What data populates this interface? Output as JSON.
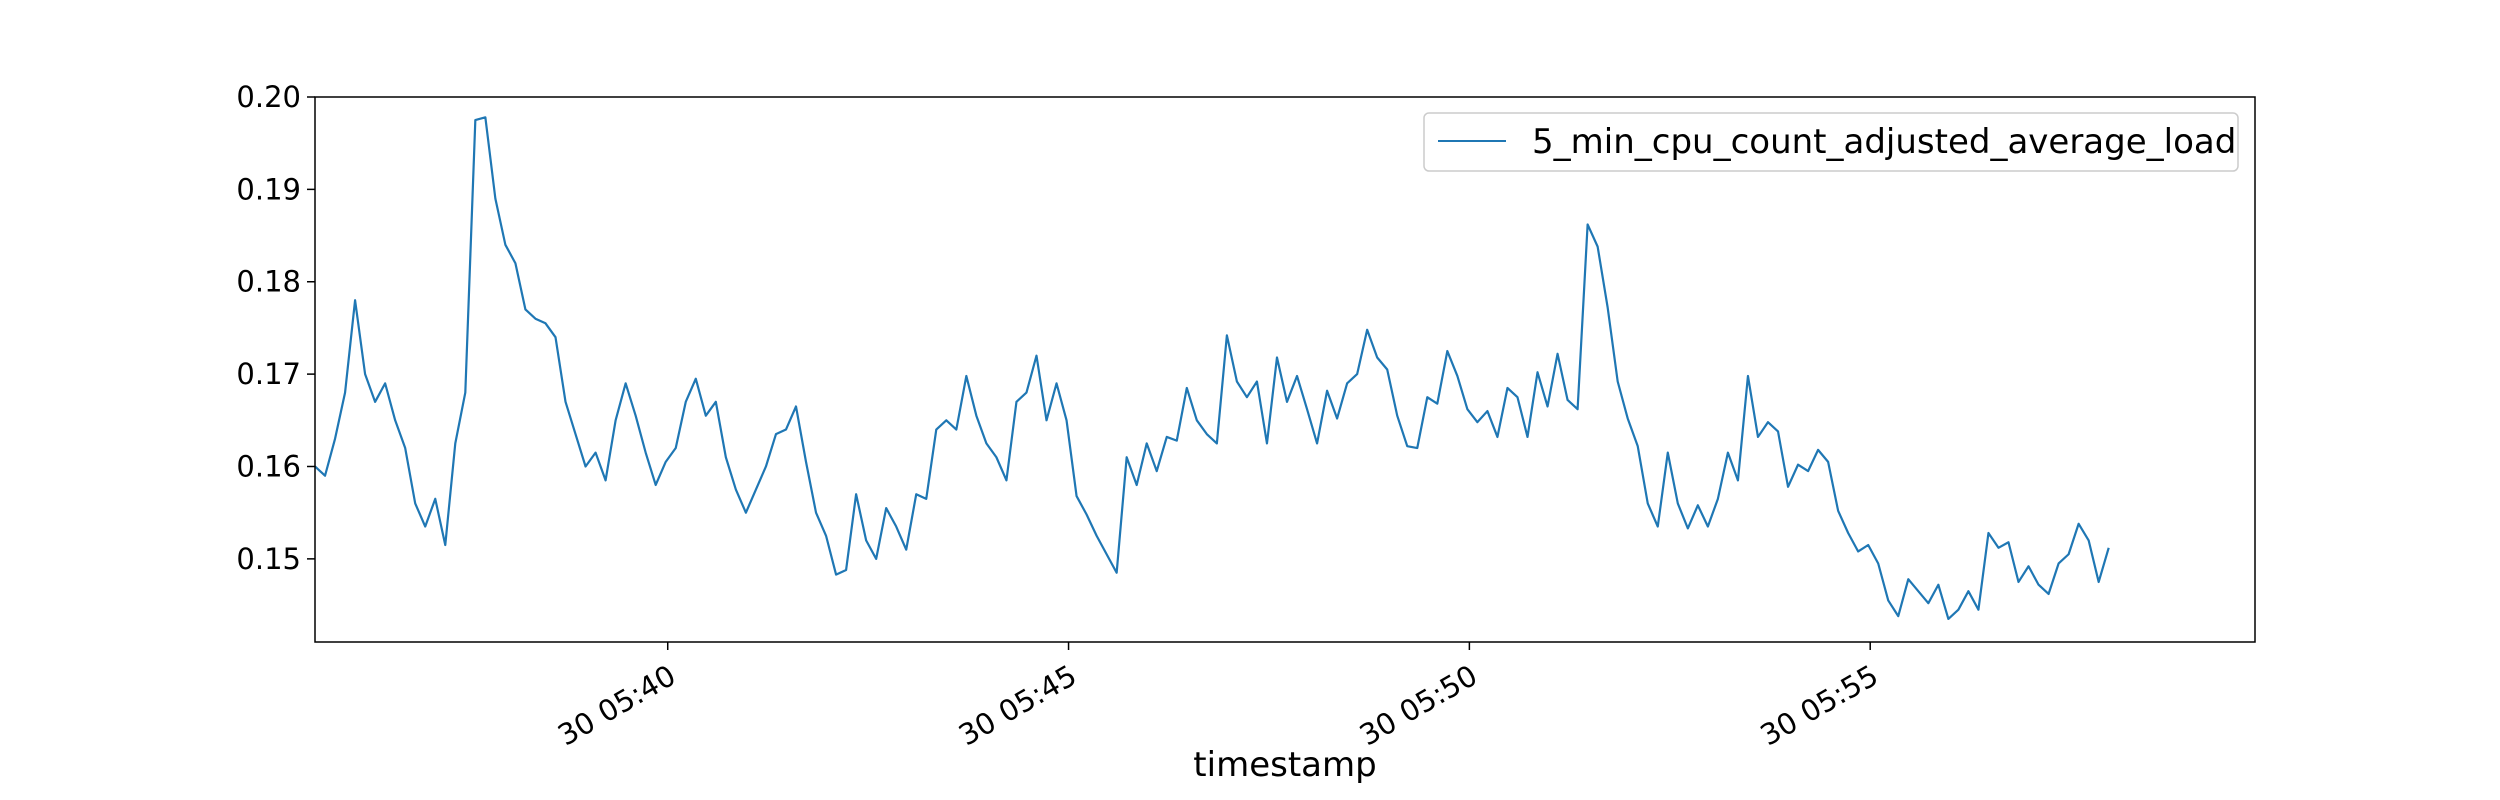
{
  "chart_data": {
    "type": "line",
    "title": "",
    "xlabel": "timestamp",
    "ylabel": "",
    "x_ticks": [
      {
        "value": 5.2,
        "label": "30 05:40"
      },
      {
        "value": 10.2,
        "label": "30 05:45"
      },
      {
        "value": 15.2,
        "label": "30 05:50"
      },
      {
        "value": 20.2,
        "label": "30 05:55"
      }
    ],
    "xlim": [
      0.8,
      25.0
    ],
    "x_unit": "minutes after 05:35",
    "y_ticks": [
      0.15,
      0.16,
      0.17,
      0.18,
      0.19,
      0.2
    ],
    "y_tick_labels": [
      "0.15",
      "0.16",
      "0.17",
      "0.18",
      "0.19",
      "0.20"
    ],
    "ylim": [
      0.141,
      0.2
    ],
    "grid": false,
    "legend": {
      "position": "top-right"
    },
    "series": [
      {
        "name": "5_min_cpu_count_adjusted_average_load",
        "color": "#1f77b4",
        "x_start": 0.8,
        "x_step": 0.125,
        "values": [
          0.16,
          0.159,
          0.163,
          0.168,
          0.178,
          0.17,
          0.167,
          0.169,
          0.165,
          0.162,
          0.156,
          0.1535,
          0.1565,
          0.1515,
          0.1625,
          0.168,
          0.1975,
          0.1978,
          0.189,
          0.184,
          0.182,
          0.177,
          0.176,
          0.1755,
          0.174,
          0.167,
          0.1635,
          0.16,
          0.1615,
          0.1585,
          0.165,
          0.169,
          0.1655,
          0.1615,
          0.158,
          0.1605,
          0.162,
          0.167,
          0.1695,
          0.1655,
          0.167,
          0.161,
          0.1575,
          0.155,
          0.1575,
          0.16,
          0.1635,
          0.164,
          0.1665,
          0.1605,
          0.155,
          0.1525,
          0.1483,
          0.1488,
          0.157,
          0.152,
          0.15,
          0.1555,
          0.1535,
          0.151,
          0.157,
          0.1565,
          0.164,
          0.165,
          0.164,
          0.1698,
          0.1655,
          0.1625,
          0.161,
          0.1585,
          0.167,
          0.168,
          0.172,
          0.165,
          0.169,
          0.165,
          0.1568,
          0.1548,
          0.1525,
          0.1505,
          0.1485,
          0.161,
          0.158,
          0.1625,
          0.1595,
          0.1632,
          0.1628,
          0.1685,
          0.165,
          0.1635,
          0.1625,
          0.1742,
          0.1692,
          0.1675,
          0.1692,
          0.1625,
          0.1718,
          0.167,
          0.1698,
          0.1662,
          0.1625,
          0.1682,
          0.1652,
          0.169,
          0.17,
          0.1748,
          0.1718,
          0.1705,
          0.1655,
          0.1622,
          0.162,
          0.1675,
          0.1668,
          0.1725,
          0.1698,
          0.1662,
          0.1648,
          0.166,
          0.1632,
          0.1685,
          0.1675,
          0.1632,
          0.1702,
          0.1665,
          0.1722,
          0.1672,
          0.1662,
          0.1862,
          0.1838,
          0.1772,
          0.1692,
          0.1652,
          0.1622,
          0.156,
          0.1535,
          0.1615,
          0.156,
          0.1533,
          0.1558,
          0.1535,
          0.1565,
          0.1615,
          0.1585,
          0.1698,
          0.1632,
          0.1648,
          0.1638,
          0.1578,
          0.1602,
          0.1595,
          0.1618,
          0.1605,
          0.1552,
          0.1528,
          0.1508,
          0.1515,
          0.1495,
          0.1455,
          0.1438,
          0.1478,
          0.1465,
          0.1452,
          0.1472,
          0.1435,
          0.1445,
          0.1465,
          0.1445,
          0.1528,
          0.1512,
          0.1518,
          0.1475,
          0.1492,
          0.1472,
          0.1462,
          0.1495,
          0.1505,
          0.1538,
          0.152,
          0.1475,
          0.1512
        ]
      }
    ]
  }
}
